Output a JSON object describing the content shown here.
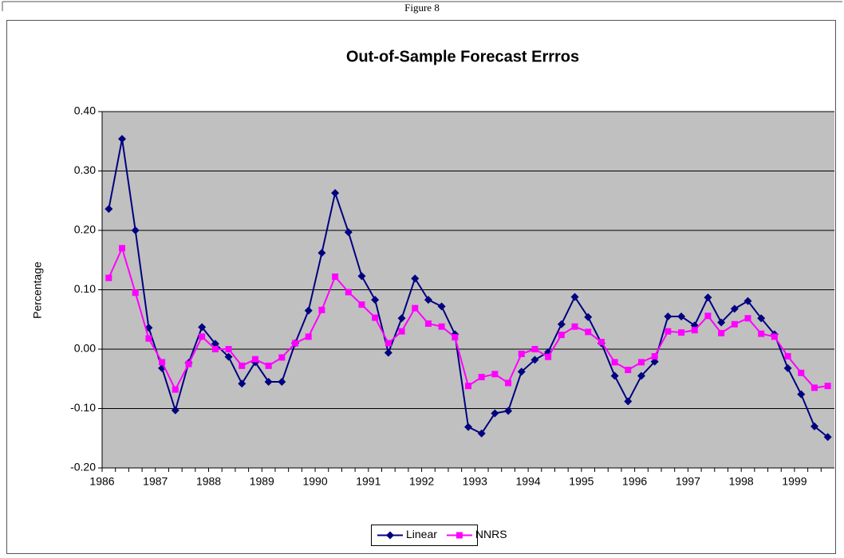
{
  "caption": "Figure 8",
  "chart_data": {
    "type": "line",
    "title": "Out-of-Sample Forecast Errros",
    "y_label": "Percentage",
    "categories": [
      "1986",
      null,
      null,
      null,
      "1987",
      null,
      null,
      null,
      "1988",
      null,
      null,
      null,
      "1989",
      null,
      null,
      null,
      "1990",
      null,
      null,
      null,
      "1991",
      null,
      null,
      null,
      "1992",
      null,
      null,
      null,
      "1993",
      null,
      null,
      null,
      "1994",
      null,
      null,
      null,
      "1995",
      null,
      null,
      null,
      "1996",
      null,
      null,
      null,
      "1997",
      null,
      null,
      null,
      "1998",
      null,
      null,
      null,
      "1999",
      null,
      null
    ],
    "series": [
      {
        "name": "Linear",
        "color": "#000080",
        "marker": "diamond",
        "values": [
          0.236,
          0.354,
          0.2,
          0.036,
          -0.032,
          -0.103,
          -0.023,
          0.037,
          0.009,
          -0.013,
          -0.058,
          -0.022,
          -0.055,
          -0.055,
          0.01,
          0.065,
          0.162,
          0.263,
          0.197,
          0.123,
          0.083,
          -0.006,
          0.052,
          0.119,
          0.083,
          0.072,
          0.025,
          -0.131,
          -0.142,
          -0.108,
          -0.104,
          -0.038,
          -0.018,
          -0.005,
          0.042,
          0.088,
          0.054,
          0.01,
          -0.045,
          -0.088,
          -0.045,
          -0.021,
          0.055,
          0.055,
          0.04,
          0.087,
          0.045,
          0.068,
          0.081,
          0.052,
          0.025,
          -0.032,
          -0.076,
          -0.13,
          -0.148
        ]
      },
      {
        "name": "NNRS",
        "color": "#ff00ff",
        "marker": "square",
        "values": [
          0.12,
          0.17,
          0.095,
          0.018,
          -0.022,
          -0.068,
          -0.025,
          0.021,
          0.0,
          0.0,
          -0.028,
          -0.017,
          -0.028,
          -0.014,
          0.01,
          0.021,
          0.066,
          0.122,
          0.096,
          0.075,
          0.053,
          0.01,
          0.03,
          0.069,
          0.043,
          0.038,
          0.02,
          -0.062,
          -0.047,
          -0.042,
          -0.057,
          -0.008,
          0.0,
          -0.013,
          0.024,
          0.038,
          0.029,
          0.012,
          -0.022,
          -0.035,
          -0.022,
          -0.012,
          0.03,
          0.028,
          0.032,
          0.056,
          0.027,
          0.042,
          0.052,
          0.026,
          0.021,
          -0.012,
          -0.04,
          -0.065,
          -0.062
        ]
      }
    ],
    "ylim": [
      -0.2,
      0.4
    ],
    "yticks": [
      {
        "value": -0.2,
        "label": "-0.20"
      },
      {
        "value": -0.1,
        "label": "-0.10"
      },
      {
        "value": 0,
        "label": "0.00"
      },
      {
        "value": 0.1,
        "label": "0.10"
      },
      {
        "value": 0.2,
        "label": "0.20"
      },
      {
        "value": 0.3,
        "label": "0.30"
      },
      {
        "value": 0.4,
        "label": "0.40"
      }
    ],
    "grid": true,
    "plot_background": "#c0c0c0",
    "legend": "bottom"
  }
}
